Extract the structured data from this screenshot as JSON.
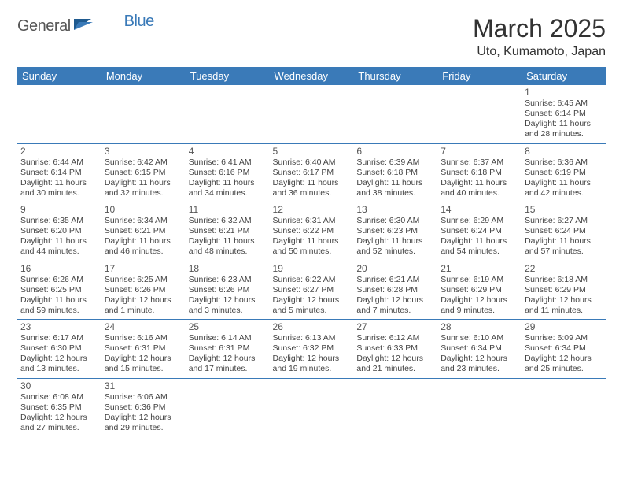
{
  "brand": {
    "part1": "General",
    "part2": "Blue"
  },
  "title": "March 2025",
  "location": "Uto, Kumamoto, Japan",
  "colors": {
    "accent": "#3a7ab8",
    "bg": "#ffffff",
    "text": "#333333",
    "header_text": "#ffffff",
    "row_border": "#3a7ab8"
  },
  "weekdays": [
    "Sunday",
    "Monday",
    "Tuesday",
    "Wednesday",
    "Thursday",
    "Friday",
    "Saturday"
  ],
  "weeks": [
    [
      null,
      null,
      null,
      null,
      null,
      null,
      {
        "n": "1",
        "sr": "6:45 AM",
        "ss": "6:14 PM",
        "dl": "11 hours and 28 minutes."
      }
    ],
    [
      {
        "n": "2",
        "sr": "6:44 AM",
        "ss": "6:14 PM",
        "dl": "11 hours and 30 minutes."
      },
      {
        "n": "3",
        "sr": "6:42 AM",
        "ss": "6:15 PM",
        "dl": "11 hours and 32 minutes."
      },
      {
        "n": "4",
        "sr": "6:41 AM",
        "ss": "6:16 PM",
        "dl": "11 hours and 34 minutes."
      },
      {
        "n": "5",
        "sr": "6:40 AM",
        "ss": "6:17 PM",
        "dl": "11 hours and 36 minutes."
      },
      {
        "n": "6",
        "sr": "6:39 AM",
        "ss": "6:18 PM",
        "dl": "11 hours and 38 minutes."
      },
      {
        "n": "7",
        "sr": "6:37 AM",
        "ss": "6:18 PM",
        "dl": "11 hours and 40 minutes."
      },
      {
        "n": "8",
        "sr": "6:36 AM",
        "ss": "6:19 PM",
        "dl": "11 hours and 42 minutes."
      }
    ],
    [
      {
        "n": "9",
        "sr": "6:35 AM",
        "ss": "6:20 PM",
        "dl": "11 hours and 44 minutes."
      },
      {
        "n": "10",
        "sr": "6:34 AM",
        "ss": "6:21 PM",
        "dl": "11 hours and 46 minutes."
      },
      {
        "n": "11",
        "sr": "6:32 AM",
        "ss": "6:21 PM",
        "dl": "11 hours and 48 minutes."
      },
      {
        "n": "12",
        "sr": "6:31 AM",
        "ss": "6:22 PM",
        "dl": "11 hours and 50 minutes."
      },
      {
        "n": "13",
        "sr": "6:30 AM",
        "ss": "6:23 PM",
        "dl": "11 hours and 52 minutes."
      },
      {
        "n": "14",
        "sr": "6:29 AM",
        "ss": "6:24 PM",
        "dl": "11 hours and 54 minutes."
      },
      {
        "n": "15",
        "sr": "6:27 AM",
        "ss": "6:24 PM",
        "dl": "11 hours and 57 minutes."
      }
    ],
    [
      {
        "n": "16",
        "sr": "6:26 AM",
        "ss": "6:25 PM",
        "dl": "11 hours and 59 minutes."
      },
      {
        "n": "17",
        "sr": "6:25 AM",
        "ss": "6:26 PM",
        "dl": "12 hours and 1 minute."
      },
      {
        "n": "18",
        "sr": "6:23 AM",
        "ss": "6:26 PM",
        "dl": "12 hours and 3 minutes."
      },
      {
        "n": "19",
        "sr": "6:22 AM",
        "ss": "6:27 PM",
        "dl": "12 hours and 5 minutes."
      },
      {
        "n": "20",
        "sr": "6:21 AM",
        "ss": "6:28 PM",
        "dl": "12 hours and 7 minutes."
      },
      {
        "n": "21",
        "sr": "6:19 AM",
        "ss": "6:29 PM",
        "dl": "12 hours and 9 minutes."
      },
      {
        "n": "22",
        "sr": "6:18 AM",
        "ss": "6:29 PM",
        "dl": "12 hours and 11 minutes."
      }
    ],
    [
      {
        "n": "23",
        "sr": "6:17 AM",
        "ss": "6:30 PM",
        "dl": "12 hours and 13 minutes."
      },
      {
        "n": "24",
        "sr": "6:16 AM",
        "ss": "6:31 PM",
        "dl": "12 hours and 15 minutes."
      },
      {
        "n": "25",
        "sr": "6:14 AM",
        "ss": "6:31 PM",
        "dl": "12 hours and 17 minutes."
      },
      {
        "n": "26",
        "sr": "6:13 AM",
        "ss": "6:32 PM",
        "dl": "12 hours and 19 minutes."
      },
      {
        "n": "27",
        "sr": "6:12 AM",
        "ss": "6:33 PM",
        "dl": "12 hours and 21 minutes."
      },
      {
        "n": "28",
        "sr": "6:10 AM",
        "ss": "6:34 PM",
        "dl": "12 hours and 23 minutes."
      },
      {
        "n": "29",
        "sr": "6:09 AM",
        "ss": "6:34 PM",
        "dl": "12 hours and 25 minutes."
      }
    ],
    [
      {
        "n": "30",
        "sr": "6:08 AM",
        "ss": "6:35 PM",
        "dl": "12 hours and 27 minutes."
      },
      {
        "n": "31",
        "sr": "6:06 AM",
        "ss": "6:36 PM",
        "dl": "12 hours and 29 minutes."
      },
      null,
      null,
      null,
      null,
      null
    ]
  ],
  "labels": {
    "sunrise": "Sunrise:",
    "sunset": "Sunset:",
    "daylight": "Daylight:"
  }
}
